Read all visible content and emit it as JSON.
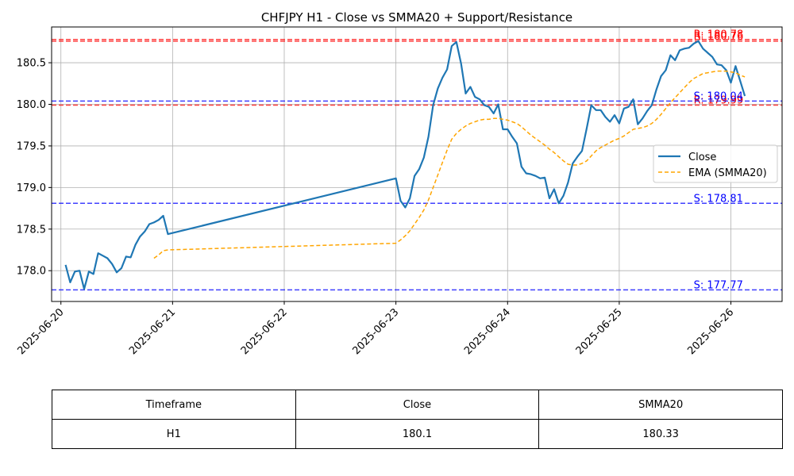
{
  "chart_data": {
    "type": "line",
    "title": "CHFJPY H1 - Close vs SMMA20 + Support/Resistance",
    "xlabel": "",
    "ylabel": "",
    "x_ticks": [
      "2025-06-20",
      "2025-06-21",
      "2025-06-22",
      "2025-06-23",
      "2025-06-24",
      "2025-06-25",
      "2025-06-26"
    ],
    "y_ticks": [
      "178.0",
      "178.5",
      "179.0",
      "179.5",
      "180.0",
      "180.5"
    ],
    "xlim": [
      "2025-06-19 22:00",
      "2025-06-26 11:00"
    ],
    "ylim": [
      177.63,
      180.93
    ],
    "grid": true,
    "legend_position": "center-right",
    "series": [
      {
        "name": "Close",
        "color": "#1f77b4",
        "style": "solid",
        "points": [
          [
            "2025-06-20 01:00",
            178.07
          ],
          [
            "2025-06-20 02:00",
            177.86
          ],
          [
            "2025-06-20 03:00",
            177.99
          ],
          [
            "2025-06-20 04:00",
            178.0
          ],
          [
            "2025-06-20 05:00",
            177.78
          ],
          [
            "2025-06-20 06:00",
            177.99
          ],
          [
            "2025-06-20 07:00",
            177.96
          ],
          [
            "2025-06-20 08:00",
            178.21
          ],
          [
            "2025-06-20 09:00",
            178.18
          ],
          [
            "2025-06-20 10:00",
            178.15
          ],
          [
            "2025-06-20 11:00",
            178.08
          ],
          [
            "2025-06-20 12:00",
            177.98
          ],
          [
            "2025-06-20 13:00",
            178.03
          ],
          [
            "2025-06-20 14:00",
            178.17
          ],
          [
            "2025-06-20 15:00",
            178.16
          ],
          [
            "2025-06-20 16:00",
            178.31
          ],
          [
            "2025-06-20 17:00",
            178.41
          ],
          [
            "2025-06-20 18:00",
            178.47
          ],
          [
            "2025-06-20 19:00",
            178.56
          ],
          [
            "2025-06-20 20:00",
            178.58
          ],
          [
            "2025-06-20 21:00",
            178.61
          ],
          [
            "2025-06-20 22:00",
            178.66
          ],
          [
            "2025-06-20 23:00",
            178.44
          ],
          [
            "2025-06-23 00:00",
            179.11
          ],
          [
            "2025-06-23 01:00",
            178.84
          ],
          [
            "2025-06-23 02:00",
            178.76
          ],
          [
            "2025-06-23 03:00",
            178.87
          ],
          [
            "2025-06-23 04:00",
            179.14
          ],
          [
            "2025-06-23 05:00",
            179.22
          ],
          [
            "2025-06-23 06:00",
            179.36
          ],
          [
            "2025-06-23 07:00",
            179.61
          ],
          [
            "2025-06-23 08:00",
            179.99
          ],
          [
            "2025-06-23 09:00",
            180.19
          ],
          [
            "2025-06-23 10:00",
            180.32
          ],
          [
            "2025-06-23 11:00",
            180.42
          ],
          [
            "2025-06-23 12:00",
            180.7
          ],
          [
            "2025-06-23 13:00",
            180.75
          ],
          [
            "2025-06-23 14:00",
            180.49
          ],
          [
            "2025-06-23 15:00",
            180.13
          ],
          [
            "2025-06-23 16:00",
            180.21
          ],
          [
            "2025-06-23 17:00",
            180.09
          ],
          [
            "2025-06-23 18:00",
            180.06
          ],
          [
            "2025-06-23 19:00",
            179.99
          ],
          [
            "2025-06-23 20:00",
            179.97
          ],
          [
            "2025-06-23 21:00",
            179.89
          ],
          [
            "2025-06-23 22:00",
            180.0
          ],
          [
            "2025-06-23 23:00",
            179.7
          ],
          [
            "2025-06-24 00:00",
            179.7
          ],
          [
            "2025-06-24 01:00",
            179.61
          ],
          [
            "2025-06-24 02:00",
            179.53
          ],
          [
            "2025-06-24 03:00",
            179.25
          ],
          [
            "2025-06-24 04:00",
            179.17
          ],
          [
            "2025-06-24 05:00",
            179.16
          ],
          [
            "2025-06-24 06:00",
            179.14
          ],
          [
            "2025-06-24 07:00",
            179.11
          ],
          [
            "2025-06-24 08:00",
            179.12
          ],
          [
            "2025-06-24 09:00",
            178.87
          ],
          [
            "2025-06-24 10:00",
            178.98
          ],
          [
            "2025-06-24 11:00",
            178.81
          ],
          [
            "2025-06-24 12:00",
            178.9
          ],
          [
            "2025-06-24 13:00",
            179.06
          ],
          [
            "2025-06-24 14:00",
            179.29
          ],
          [
            "2025-06-24 15:00",
            179.37
          ],
          [
            "2025-06-24 16:00",
            179.44
          ],
          [
            "2025-06-24 17:00",
            179.71
          ],
          [
            "2025-06-24 18:00",
            179.99
          ],
          [
            "2025-06-24 19:00",
            179.93
          ],
          [
            "2025-06-24 20:00",
            179.93
          ],
          [
            "2025-06-24 21:00",
            179.85
          ],
          [
            "2025-06-24 22:00",
            179.79
          ],
          [
            "2025-06-24 23:00",
            179.87
          ],
          [
            "2025-06-25 00:00",
            179.77
          ],
          [
            "2025-06-25 01:00",
            179.95
          ],
          [
            "2025-06-25 02:00",
            179.97
          ],
          [
            "2025-06-25 03:00",
            180.06
          ],
          [
            "2025-06-25 04:00",
            179.76
          ],
          [
            "2025-06-25 05:00",
            179.83
          ],
          [
            "2025-06-25 06:00",
            179.92
          ],
          [
            "2025-06-25 07:00",
            179.99
          ],
          [
            "2025-06-25 08:00",
            180.18
          ],
          [
            "2025-06-25 09:00",
            180.34
          ],
          [
            "2025-06-25 10:00",
            180.41
          ],
          [
            "2025-06-25 11:00",
            180.59
          ],
          [
            "2025-06-25 12:00",
            180.53
          ],
          [
            "2025-06-25 13:00",
            180.65
          ],
          [
            "2025-06-25 14:00",
            180.67
          ],
          [
            "2025-06-25 15:00",
            180.68
          ],
          [
            "2025-06-25 16:00",
            180.73
          ],
          [
            "2025-06-25 17:00",
            180.76
          ],
          [
            "2025-06-25 18:00",
            180.67
          ],
          [
            "2025-06-25 19:00",
            180.62
          ],
          [
            "2025-06-25 20:00",
            180.57
          ],
          [
            "2025-06-25 21:00",
            180.48
          ],
          [
            "2025-06-25 22:00",
            180.47
          ],
          [
            "2025-06-25 23:00",
            180.41
          ],
          [
            "2025-06-26 00:00",
            180.26
          ],
          [
            "2025-06-26 01:00",
            180.46
          ],
          [
            "2025-06-26 02:00",
            180.28
          ],
          [
            "2025-06-26 03:00",
            180.1
          ]
        ]
      },
      {
        "name": "EMA (SMMA20)",
        "color": "#ffa500",
        "style": "dashed",
        "points": [
          [
            "2025-06-20 20:00",
            178.15
          ],
          [
            "2025-06-20 21:00",
            178.19
          ],
          [
            "2025-06-20 22:00",
            178.24
          ],
          [
            "2025-06-20 23:00",
            178.25
          ],
          [
            "2025-06-23 00:00",
            178.33
          ],
          [
            "2025-06-23 01:00",
            178.37
          ],
          [
            "2025-06-23 02:00",
            178.42
          ],
          [
            "2025-06-23 03:00",
            178.48
          ],
          [
            "2025-06-23 04:00",
            178.56
          ],
          [
            "2025-06-23 05:00",
            178.64
          ],
          [
            "2025-06-23 06:00",
            178.73
          ],
          [
            "2025-06-23 07:00",
            178.85
          ],
          [
            "2025-06-23 08:00",
            179.0
          ],
          [
            "2025-06-23 09:00",
            179.15
          ],
          [
            "2025-06-23 10:00",
            179.3
          ],
          [
            "2025-06-23 11:00",
            179.45
          ],
          [
            "2025-06-23 12:00",
            179.58
          ],
          [
            "2025-06-23 13:00",
            179.65
          ],
          [
            "2025-06-23 14:00",
            179.7
          ],
          [
            "2025-06-23 15:00",
            179.74
          ],
          [
            "2025-06-23 16:00",
            179.77
          ],
          [
            "2025-06-23 17:00",
            179.79
          ],
          [
            "2025-06-23 18:00",
            179.81
          ],
          [
            "2025-06-23 19:00",
            179.82
          ],
          [
            "2025-06-23 20:00",
            179.82
          ],
          [
            "2025-06-23 21:00",
            179.83
          ],
          [
            "2025-06-23 22:00",
            179.83
          ],
          [
            "2025-06-23 23:00",
            179.82
          ],
          [
            "2025-06-24 00:00",
            179.81
          ],
          [
            "2025-06-24 01:00",
            179.79
          ],
          [
            "2025-06-24 02:00",
            179.77
          ],
          [
            "2025-06-24 03:00",
            179.73
          ],
          [
            "2025-06-24 04:00",
            179.68
          ],
          [
            "2025-06-24 05:00",
            179.63
          ],
          [
            "2025-06-24 06:00",
            179.59
          ],
          [
            "2025-06-24 07:00",
            179.55
          ],
          [
            "2025-06-24 08:00",
            179.51
          ],
          [
            "2025-06-24 09:00",
            179.46
          ],
          [
            "2025-06-24 10:00",
            179.42
          ],
          [
            "2025-06-24 11:00",
            179.37
          ],
          [
            "2025-06-24 12:00",
            179.32
          ],
          [
            "2025-06-24 13:00",
            179.28
          ],
          [
            "2025-06-24 14:00",
            179.27
          ],
          [
            "2025-06-24 15:00",
            179.27
          ],
          [
            "2025-06-24 16:00",
            179.29
          ],
          [
            "2025-06-24 17:00",
            179.32
          ],
          [
            "2025-06-24 18:00",
            179.38
          ],
          [
            "2025-06-24 19:00",
            179.44
          ],
          [
            "2025-06-24 20:00",
            179.48
          ],
          [
            "2025-06-24 21:00",
            179.51
          ],
          [
            "2025-06-24 22:00",
            179.54
          ],
          [
            "2025-06-24 23:00",
            179.57
          ],
          [
            "2025-06-25 00:00",
            179.59
          ],
          [
            "2025-06-25 01:00",
            179.62
          ],
          [
            "2025-06-25 02:00",
            179.66
          ],
          [
            "2025-06-25 03:00",
            179.7
          ],
          [
            "2025-06-25 04:00",
            179.71
          ],
          [
            "2025-06-25 05:00",
            179.72
          ],
          [
            "2025-06-25 06:00",
            179.74
          ],
          [
            "2025-06-25 07:00",
            179.77
          ],
          [
            "2025-06-25 08:00",
            179.82
          ],
          [
            "2025-06-25 09:00",
            179.88
          ],
          [
            "2025-06-25 10:00",
            179.95
          ],
          [
            "2025-06-25 11:00",
            180.02
          ],
          [
            "2025-06-25 12:00",
            180.08
          ],
          [
            "2025-06-25 13:00",
            180.14
          ],
          [
            "2025-06-25 14:00",
            180.2
          ],
          [
            "2025-06-25 15:00",
            180.26
          ],
          [
            "2025-06-25 16:00",
            180.31
          ],
          [
            "2025-06-25 17:00",
            180.34
          ],
          [
            "2025-06-25 18:00",
            180.37
          ],
          [
            "2025-06-25 19:00",
            180.38
          ],
          [
            "2025-06-25 20:00",
            180.39
          ],
          [
            "2025-06-25 21:00",
            180.4
          ],
          [
            "2025-06-25 22:00",
            180.4
          ],
          [
            "2025-06-25 23:00",
            180.4
          ],
          [
            "2025-06-26 00:00",
            180.39
          ],
          [
            "2025-06-26 01:00",
            180.38
          ],
          [
            "2025-06-26 02:00",
            180.35
          ],
          [
            "2025-06-26 03:00",
            180.33
          ]
        ]
      }
    ],
    "levels": [
      {
        "type": "resistance",
        "value": 180.78,
        "label": "R: 180.78",
        "color": "#ff0000",
        "style": "dashed"
      },
      {
        "type": "resistance",
        "value": 180.76,
        "label": "R: 180.76",
        "color": "#ff0000",
        "style": "dashed"
      },
      {
        "type": "resistance",
        "value": 179.99,
        "label": "R: 179.99",
        "color": "#ff0000",
        "style": "dashed"
      },
      {
        "type": "support",
        "value": 180.04,
        "label": "S: 180.04",
        "color": "#0000ff",
        "style": "dashed"
      },
      {
        "type": "support",
        "value": 178.81,
        "label": "S: 178.81",
        "color": "#0000ff",
        "style": "dashed"
      },
      {
        "type": "support",
        "value": 177.77,
        "label": "S: 177.77",
        "color": "#0000ff",
        "style": "dashed"
      }
    ]
  },
  "table": {
    "headers": [
      "Timeframe",
      "Close",
      "SMMA20"
    ],
    "rows": [
      [
        "H1",
        "180.1",
        "180.33"
      ]
    ]
  }
}
